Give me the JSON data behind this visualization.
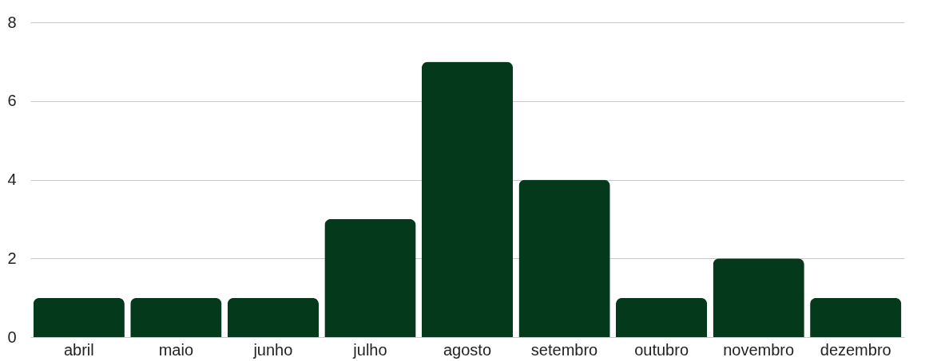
{
  "chart_data": {
    "type": "bar",
    "categories": [
      "abril",
      "maio",
      "junho",
      "julho",
      "agosto",
      "setembro",
      "outubro",
      "novembro",
      "dezembro"
    ],
    "values": [
      1,
      1,
      1,
      3,
      7,
      4,
      1,
      2,
      1
    ],
    "color": "#04391b",
    "ylim": [
      0,
      8
    ],
    "yticks": [
      0,
      2,
      4,
      6,
      8
    ],
    "grid": "y"
  }
}
